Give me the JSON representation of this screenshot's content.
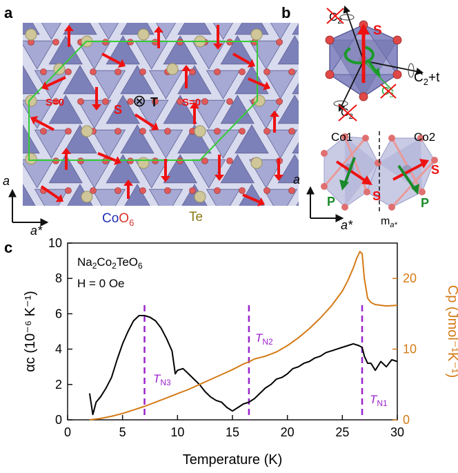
{
  "panel_a": {
    "letter": "a",
    "s0_left": "S=0",
    "s0_right": "S=0",
    "s_label": "S",
    "t_label": "T",
    "t_symbol": "⊗",
    "axis_a": "a",
    "axis_astar": "a*",
    "legend_co": "Co",
    "legend_o": "O",
    "legend_6": "6",
    "legend_te": "Te",
    "colors": {
      "co_octahedron": "#7b7fb8",
      "oxygen": "#e06060",
      "te": "#cfc79a",
      "spin": "#ee1111",
      "cell": "#33cc33"
    }
  },
  "panel_b": {
    "letter": "b",
    "s_top": "S",
    "c2_tl": "C",
    "c2_tl_sub": "2",
    "c2t_label": "C",
    "c2t_sub": "2",
    "c2t_suffix": "+t",
    "c3_label": "C",
    "c3_sub": "3",
    "c2_bl": "C",
    "c2_bl_sub": "2",
    "co1": "Co1",
    "co2": "Co2",
    "axis_a": "a",
    "axis_astar": "a*",
    "mirror": "m",
    "mirror_sub": "a*",
    "s_left": "S",
    "s_right": "S",
    "p_left": "P",
    "p_right": "P"
  },
  "panel_c": {
    "letter": "c",
    "compound_parts": [
      "Na",
      "2",
      "Co",
      "2",
      "TeO",
      "6"
    ],
    "field": "H = 0 Oe",
    "tn1": "T",
    "tn1_sub": "N1",
    "tn2": "T",
    "tn2_sub": "N2",
    "tn3": "T",
    "tn3_sub": "N3",
    "colors": {
      "alpha": "#000000",
      "cp": "#d47a15",
      "transition": "#9a22cc"
    }
  },
  "chart_data": {
    "type": "line",
    "xlabel": "Temperature (K)",
    "ylabel_left": "αc (10⁻⁶ K⁻¹)",
    "ylabel_right": "Cp (Jmol⁻¹K⁻¹)",
    "xlim": [
      0,
      30
    ],
    "ylim_left": [
      0,
      10
    ],
    "ylim_right": [
      0,
      25
    ],
    "x_ticks": [
      "0",
      "5",
      "10",
      "15",
      "20",
      "25",
      "30"
    ],
    "y_ticks_left": [
      "0",
      "2",
      "4",
      "6",
      "8",
      "10"
    ],
    "y_ticks_right": [
      "0",
      "10",
      "20"
    ],
    "transitions": [
      {
        "label": "TN3",
        "x": 7.0
      },
      {
        "label": "TN2",
        "x": 16.5
      },
      {
        "label": "TN1",
        "x": 26.8
      }
    ],
    "series": [
      {
        "axis": "left",
        "x": [
          2.0,
          2.3,
          2.6,
          3.0,
          3.5,
          4.0,
          4.5,
          5.0,
          5.5,
          6.0,
          6.5,
          7.0,
          7.5,
          8.0,
          8.5,
          9.0,
          9.5,
          9.8,
          10.0,
          10.5,
          11.0,
          11.5,
          12.0,
          12.5,
          13.0,
          13.5,
          14.0,
          14.5,
          15.0,
          15.5,
          16.0,
          16.5,
          17.0,
          17.5,
          18.0,
          18.5,
          19.0,
          19.5,
          20.0,
          20.5,
          21.0,
          21.5,
          22.0,
          22.5,
          23.0,
          23.5,
          24.0,
          24.5,
          25.0,
          25.5,
          26.0,
          26.5,
          26.8,
          27.0,
          27.3,
          27.6,
          28.0,
          28.5,
          29.0,
          29.5,
          30.0
        ],
        "values": [
          1.5,
          0.3,
          1.0,
          1.3,
          1.8,
          2.4,
          3.4,
          4.3,
          5.0,
          5.6,
          5.9,
          5.9,
          5.8,
          5.6,
          5.2,
          4.6,
          3.9,
          2.6,
          2.8,
          2.9,
          2.6,
          2.3,
          2.0,
          1.6,
          1.3,
          1.1,
          1.0,
          0.7,
          0.5,
          0.7,
          0.9,
          1.0,
          1.2,
          1.5,
          1.8,
          2.0,
          2.3,
          2.4,
          2.6,
          2.9,
          3.0,
          3.2,
          3.3,
          3.5,
          3.6,
          3.8,
          3.9,
          4.0,
          4.1,
          4.2,
          4.3,
          4.2,
          4.1,
          3.6,
          3.2,
          3.2,
          2.8,
          3.3,
          3.0,
          3.4,
          3.3
        ]
      },
      {
        "axis": "right",
        "x": [
          2.0,
          3.0,
          4.0,
          5.0,
          6.0,
          7.0,
          8.0,
          9.0,
          10.0,
          11.0,
          12.0,
          13.0,
          14.0,
          15.0,
          16.0,
          16.5,
          17.0,
          18.0,
          19.0,
          20.0,
          21.0,
          22.0,
          23.0,
          24.0,
          25.0,
          25.5,
          26.0,
          26.3,
          26.6,
          26.8,
          27.0,
          27.3,
          27.6,
          28.0,
          29.0,
          30.0
        ],
        "values": [
          0.0,
          0.2,
          0.5,
          0.9,
          1.4,
          1.9,
          2.5,
          3.1,
          3.7,
          4.3,
          5.0,
          5.7,
          6.4,
          7.1,
          7.9,
          8.2,
          8.6,
          9.0,
          9.6,
          10.5,
          11.6,
          12.9,
          14.4,
          16.1,
          18.2,
          19.7,
          21.5,
          22.8,
          23.8,
          23.5,
          20.0,
          17.2,
          16.6,
          16.3,
          16.1,
          16.2
        ]
      }
    ]
  }
}
